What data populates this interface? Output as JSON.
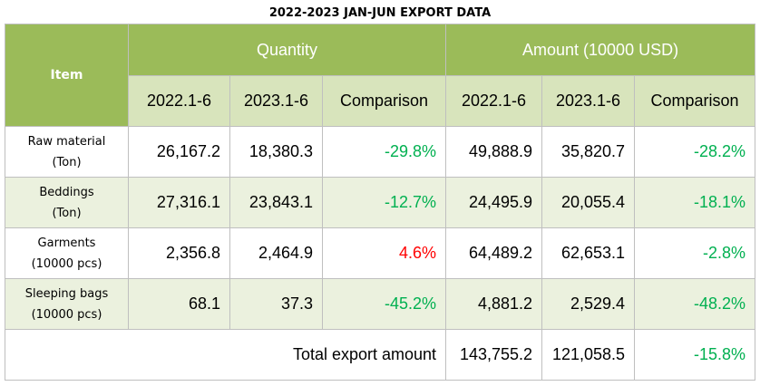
{
  "title": "2022-2023 JAN-JUN EXPORT DATA",
  "header": {
    "item": "Item",
    "quantity": "Quantity",
    "amount": "Amount (10000 USD)",
    "sub": [
      "2022.1-6",
      "2023.1-6",
      "Comparison",
      "2022.1-6",
      "2023.1-6",
      "Comparison"
    ]
  },
  "rows": [
    {
      "name": "Raw material",
      "unit": "(Ton)",
      "q2022": "26,167.2",
      "q2023": "18,380.3",
      "qcmp": "-29.8%",
      "a2022": "49,888.9",
      "a2023": "35,820.7",
      "acmp": "-28.2%"
    },
    {
      "name": "Beddings",
      "unit": "(Ton)",
      "q2022": "27,316.1",
      "q2023": "23,843.1",
      "qcmp": "-12.7%",
      "a2022": "24,495.9",
      "a2023": "20,055.4",
      "acmp": "-18.1%"
    },
    {
      "name": "Garments",
      "unit": "(10000 pcs)",
      "q2022": "2,356.8",
      "q2023": "2,464.9",
      "qcmp": "4.6%",
      "a2022": "64,489.2",
      "a2023": "62,653.1",
      "acmp": "-2.8%"
    },
    {
      "name": "Sleeping bags",
      "unit": "(10000 pcs)",
      "q2022": "68.1",
      "q2023": "37.3",
      "qcmp": "-45.2%",
      "a2022": "4,881.2",
      "a2023": "2,529.4",
      "acmp": "-48.2%"
    }
  ],
  "total": {
    "label": "Total export amount",
    "a2022": "143,755.2",
    "a2023": "121,058.5",
    "acmp": "-15.8%"
  },
  "colors": {
    "header_green": "#9bbb59",
    "subheader": "#d8e4bc",
    "alt_row": "#ebf1de",
    "negative": "#00b050",
    "positive": "#ff0000"
  }
}
